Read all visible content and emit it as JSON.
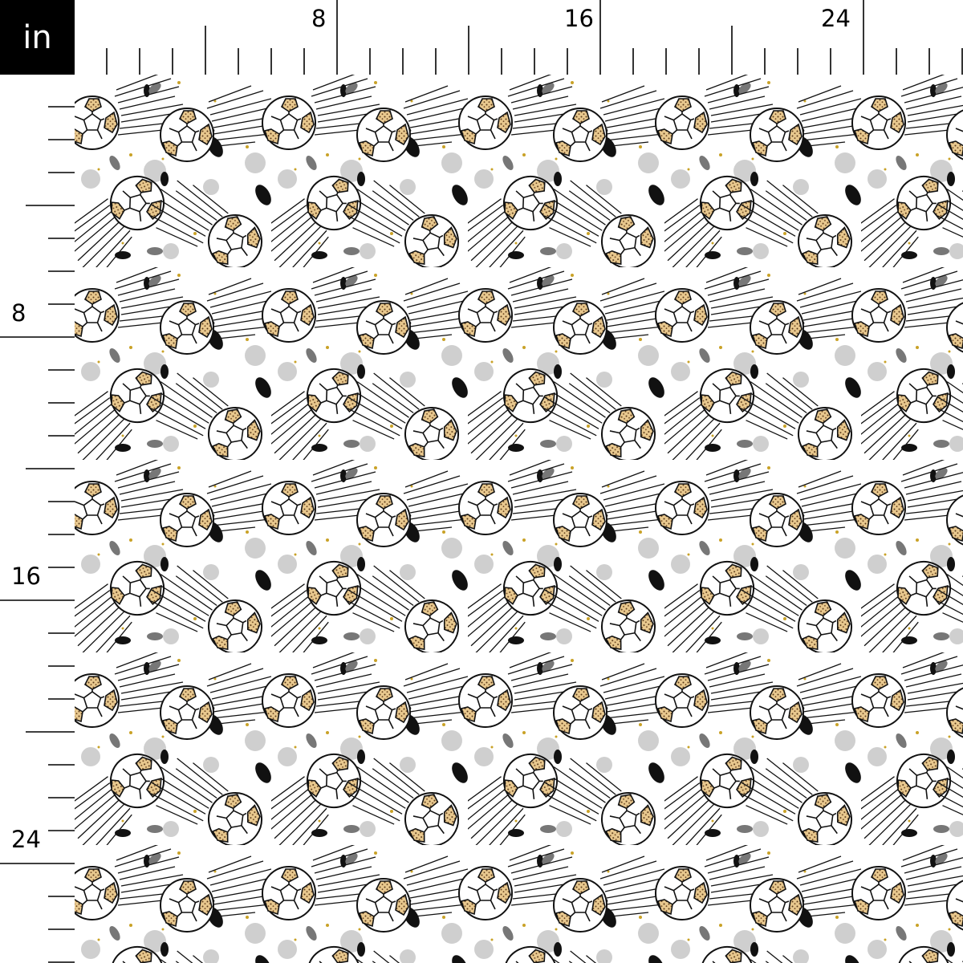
{
  "ruler": {
    "unit_label": "in",
    "top_labels": [
      "8",
      "16",
      "24"
    ],
    "left_labels": [
      "8",
      "16",
      "24"
    ],
    "label_interval_in": 8,
    "mid_tick_interval_in": 4
  },
  "fabric": {
    "motif": "soccer-ball-with-speed-lines",
    "colors": {
      "background": "#ffffff",
      "outline": "#111111",
      "leopard": "#e8c88e",
      "leopard_spot": "#5a3a1a",
      "splatter_gray": "#9a9a9a",
      "splatter_gold": "#c9a227"
    }
  }
}
